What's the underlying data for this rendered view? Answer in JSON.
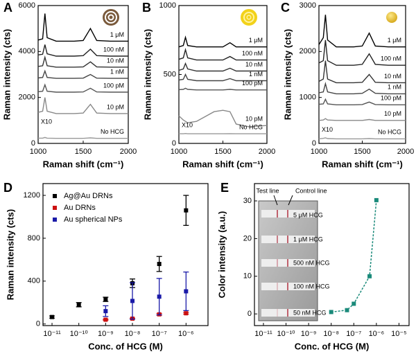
{
  "chart_data": [
    {
      "type": "line",
      "label": "A",
      "ylabel": "Raman intensity (cts)",
      "xlabel": "Raman shift (cm⁻¹)",
      "xlim": [
        1000,
        2000
      ],
      "xticks": [
        1000,
        1500,
        2000
      ],
      "ylim": [
        0,
        6000
      ],
      "yticks": [
        0,
        2000,
        4000,
        6000
      ],
      "annotation": "X10",
      "x": [
        1000,
        1050,
        1075,
        1100,
        1200,
        1400,
        1500,
        1580,
        1650,
        1800,
        2000
      ],
      "series": [
        {
          "name": "1 μM",
          "color": "#000000",
          "values": [
            4500,
            4550,
            5650,
            4600,
            4450,
            4450,
            4480,
            5000,
            4480,
            4450,
            4450
          ]
        },
        {
          "name": "100 nM",
          "color": "#222222",
          "values": [
            3850,
            3880,
            4300,
            3900,
            3800,
            3800,
            3820,
            4100,
            3820,
            3800,
            3800
          ]
        },
        {
          "name": "10 nM",
          "color": "#333333",
          "values": [
            3350,
            3380,
            3750,
            3380,
            3320,
            3320,
            3330,
            3550,
            3330,
            3320,
            3320
          ]
        },
        {
          "name": "1 nM",
          "color": "#444444",
          "values": [
            2850,
            2870,
            3150,
            2870,
            2830,
            2830,
            2840,
            3000,
            2840,
            2830,
            2830
          ]
        },
        {
          "name": "100 pM",
          "color": "#555555",
          "values": [
            2250,
            2270,
            2550,
            2270,
            2230,
            2230,
            2240,
            2400,
            2240,
            2230,
            2230
          ]
        },
        {
          "name": "10 pM",
          "color": "#888888",
          "values": [
            1350,
            1400,
            2000,
            1400,
            1300,
            1300,
            1320,
            1700,
            1320,
            1300,
            1300
          ]
        },
        {
          "name": "No HCG",
          "color": "#999999",
          "values": [
            230,
            230,
            260,
            230,
            220,
            220,
            220,
            240,
            220,
            220,
            220
          ]
        }
      ]
    },
    {
      "type": "line",
      "label": "B",
      "ylabel": "Raman intensity (cts)",
      "xlabel": "Raman shift (cm⁻¹)",
      "xlim": [
        1000,
        2000
      ],
      "xticks": [
        1000,
        1500,
        2000
      ],
      "ylim": [
        0,
        1000
      ],
      "yticks": [
        0,
        500,
        1000
      ],
      "annotation": "X10",
      "x": [
        1000,
        1050,
        1075,
        1100,
        1200,
        1400,
        1500,
        1580,
        1650,
        1800,
        2000
      ],
      "series": [
        {
          "name": "1 μM",
          "color": "#000000",
          "values": [
            700,
            710,
            770,
            710,
            700,
            700,
            700,
            730,
            700,
            700,
            700
          ]
        },
        {
          "name": "100 nM",
          "color": "#222222",
          "values": [
            610,
            620,
            680,
            620,
            605,
            605,
            605,
            630,
            605,
            605,
            605
          ]
        },
        {
          "name": "10 nM",
          "color": "#333333",
          "values": [
            530,
            540,
            580,
            540,
            525,
            525,
            525,
            545,
            525,
            525,
            525
          ]
        },
        {
          "name": "1 nM",
          "color": "#444444",
          "values": [
            460,
            465,
            500,
            465,
            455,
            455,
            455,
            470,
            455,
            455,
            455
          ]
        },
        {
          "name": "100 pM",
          "color": "#555555",
          "values": [
            390,
            392,
            400,
            392,
            388,
            388,
            388,
            392,
            388,
            388,
            388
          ]
        },
        {
          "name": "10 pM",
          "color": "#888888",
          "values": [
            200,
            170,
            160,
            150,
            160,
            230,
            240,
            230,
            140,
            120,
            130
          ]
        },
        {
          "name": "No HCG",
          "color": "#999999",
          "values": [
            70,
            70,
            72,
            70,
            70,
            70,
            70,
            71,
            70,
            70,
            70
          ]
        }
      ]
    },
    {
      "type": "line",
      "label": "C",
      "ylabel": "Raman intensity (cts)",
      "xlabel": "Raman shift (cm⁻¹)",
      "xlim": [
        1000,
        2000
      ],
      "xticks": [
        1000,
        1500,
        2000
      ],
      "ylim": [
        0,
        3000
      ],
      "yticks": [
        0,
        1000,
        2000,
        3000
      ],
      "annotation": "X10",
      "x": [
        1000,
        1050,
        1075,
        1100,
        1200,
        1400,
        1500,
        1580,
        1650,
        1800,
        2000
      ],
      "series": [
        {
          "name": "1 μM",
          "color": "#000000",
          "values": [
            2150,
            2300,
            2800,
            2250,
            2100,
            2100,
            2120,
            2400,
            2120,
            2100,
            2100
          ]
        },
        {
          "name": "100 nM",
          "color": "#222222",
          "values": [
            1750,
            1800,
            2250,
            1800,
            1700,
            1700,
            1720,
            1950,
            1720,
            1700,
            1700
          ]
        },
        {
          "name": "10 nM",
          "color": "#333333",
          "values": [
            1350,
            1400,
            1800,
            1400,
            1320,
            1320,
            1330,
            1500,
            1330,
            1320,
            1320
          ]
        },
        {
          "name": "1 nM",
          "color": "#444444",
          "values": [
            1100,
            1120,
            1300,
            1120,
            1080,
            1080,
            1090,
            1180,
            1090,
            1080,
            1080
          ]
        },
        {
          "name": "100 pM",
          "color": "#555555",
          "values": [
            850,
            860,
            960,
            860,
            840,
            840,
            845,
            900,
            845,
            840,
            840
          ]
        },
        {
          "name": "10 pM",
          "color": "#888888",
          "values": [
            500,
            510,
            540,
            510,
            500,
            500,
            500,
            520,
            500,
            500,
            500
          ]
        },
        {
          "name": "No HCG",
          "color": "#999999",
          "values": [
            100,
            110,
            120,
            105,
            100,
            100,
            100,
            105,
            100,
            100,
            100
          ]
        }
      ]
    },
    {
      "type": "scatter",
      "label": "D",
      "ylabel": "Raman intensity (cts)",
      "xlabel": "Conc. of HCG (M)",
      "xscale": "log",
      "xlim": [
        4.6e-12,
        6.6e-06
      ],
      "xticks": [
        {
          "value": 1e-11,
          "label": "10⁻¹¹"
        },
        {
          "value": 1e-10,
          "label": "10⁻¹⁰"
        },
        {
          "value": 1e-09,
          "label": "10⁻⁹"
        },
        {
          "value": 1e-08,
          "label": "10⁻⁸"
        },
        {
          "value": 1e-07,
          "label": "10⁻⁷"
        },
        {
          "value": 1e-06,
          "label": "10⁻⁶"
        }
      ],
      "ylim": [
        -15,
        1310
      ],
      "yticks": [
        0,
        400,
        800,
        1200
      ],
      "series": [
        {
          "name": "Ag@Au DRNs",
          "color": "#000000",
          "x": [
            1e-11,
            1e-10,
            1e-09,
            1e-08,
            1e-07,
            1e-06
          ],
          "values": [
            65,
            180,
            230,
            380,
            560,
            1060
          ],
          "errors": [
            10,
            20,
            20,
            40,
            70,
            140
          ]
        },
        {
          "name": "Au DRNs",
          "color": "#cc1111",
          "x": [
            1e-09,
            1e-08,
            1e-07,
            1e-06
          ],
          "values": [
            40,
            50,
            90,
            100
          ],
          "errors": [
            5,
            5,
            8,
            8
          ]
        },
        {
          "name": "Au spherical NPs",
          "color": "#1a1aa8",
          "x": [
            1e-09,
            1e-08,
            1e-07,
            1e-06
          ],
          "values": [
            120,
            215,
            255,
            305
          ],
          "errors": [
            50,
            170,
            170,
            180
          ]
        }
      ]
    },
    {
      "type": "scatter",
      "label": "E",
      "ylabel": "Color intensity (a.u.)",
      "xlabel": "Conc. of HCG (M)",
      "xscale": "log",
      "xlim": [
        4e-12,
        2.8e-05
      ],
      "xticks": [
        {
          "value": 1e-11,
          "label": "10⁻¹¹"
        },
        {
          "value": 1e-10,
          "label": "10⁻¹⁰"
        },
        {
          "value": 1e-09,
          "label": "10⁻⁹"
        },
        {
          "value": 1e-08,
          "label": "10⁻⁸"
        },
        {
          "value": 1e-07,
          "label": "10⁻⁷"
        },
        {
          "value": 1e-06,
          "label": "10⁻⁶"
        },
        {
          "value": 1e-05,
          "label": "10⁻⁵"
        }
      ],
      "ylim": [
        -3.1,
        34.6
      ],
      "yticks": [
        0,
        10,
        20,
        30
      ],
      "fit_line": "dashed",
      "annotations": [
        "Test line",
        "Control line"
      ],
      "strip_labels": [
        "5 μM HCG",
        "1 μM HCG",
        "500 nM HCG",
        "100 nM HCG",
        "50 nM HCG"
      ],
      "series": [
        {
          "color": "#1a8a7a",
          "x": [
            1e-08,
            5e-08,
            1e-07,
            5e-07,
            1e-06
          ],
          "values": [
            0.5,
            1,
            2.7,
            10,
            30.2
          ]
        }
      ]
    }
  ]
}
